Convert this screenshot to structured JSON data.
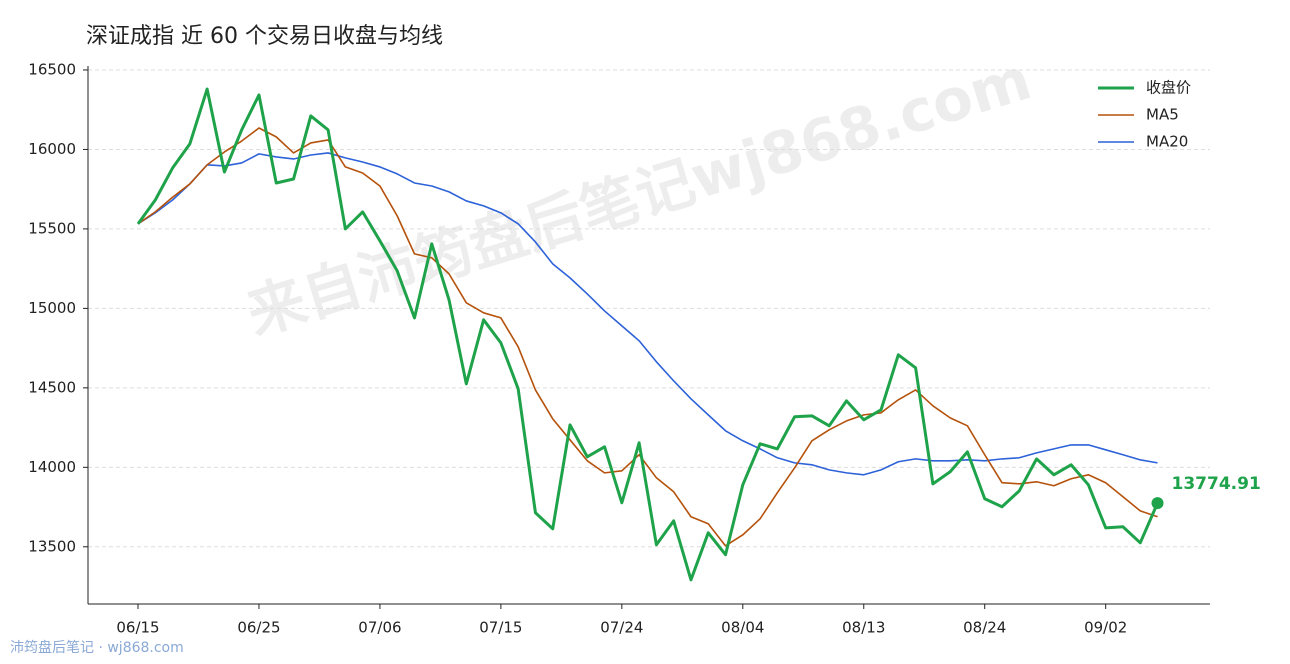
{
  "chart_data": {
    "type": "line",
    "title": "深证成指 近 60 个交易日收盘与均线",
    "watermark": "来自沛筠盘后笔记wj868.com",
    "footer": "沛筠盘后笔记 · wj868.com",
    "categories": [
      "06/15",
      null,
      null,
      null,
      null,
      null,
      null,
      "06/25",
      null,
      null,
      null,
      null,
      null,
      null,
      "07/06",
      null,
      null,
      null,
      null,
      null,
      null,
      "07/15",
      null,
      null,
      null,
      null,
      null,
      null,
      "07/24",
      null,
      null,
      null,
      null,
      null,
      null,
      "08/04",
      null,
      null,
      null,
      null,
      null,
      null,
      "08/13",
      null,
      null,
      null,
      null,
      null,
      null,
      "08/24",
      null,
      null,
      null,
      null,
      null,
      null,
      "09/02",
      null,
      null,
      null
    ],
    "series": [
      {
        "name": "收盘价",
        "color": "#1fa34a",
        "width": 3,
        "end_label": true,
        "values": [
          15532,
          15682,
          15883,
          16035,
          16380,
          15858,
          16123,
          16343,
          15789,
          15814,
          16211,
          16123,
          15500,
          15607,
          15425,
          15236,
          14940,
          15406,
          15053,
          14525,
          14928,
          14783,
          14494,
          13714,
          13613,
          14267,
          14066,
          14129,
          13777,
          14154,
          13513,
          13663,
          13292,
          13588,
          13450,
          13890,
          14148,
          14116,
          14318,
          14324,
          14261,
          14418,
          14299,
          14362,
          14708,
          14626,
          13896,
          13972,
          14097,
          13802,
          13752,
          13852,
          14053,
          13953,
          14016,
          13890,
          13619,
          13626,
          13525,
          13774.91
        ]
      },
      {
        "name": "MA5",
        "color": "#b5520c",
        "width": 1.6,
        "values": [
          15532,
          15607,
          15699,
          15783,
          15903,
          15984,
          16053,
          16135,
          16079,
          15978,
          16041,
          16060,
          15890,
          15852,
          15770,
          15582,
          15343,
          15318,
          15217,
          15035,
          14972,
          14940,
          14758,
          14487,
          14305,
          14173,
          14041,
          13965,
          13978,
          14079,
          13934,
          13846,
          13689,
          13645,
          13506,
          13575,
          13676,
          13840,
          13997,
          14167,
          14236,
          14292,
          14330,
          14343,
          14425,
          14487,
          14387,
          14311,
          14261,
          14079,
          13903,
          13896,
          13909,
          13884,
          13928,
          13953,
          13903,
          13815,
          13726,
          13689
        ]
      },
      {
        "name": "MA20",
        "color": "#2d62d8",
        "width": 1.6,
        "values": [
          15532,
          15601,
          15682,
          15783,
          15903,
          15896,
          15915,
          15972,
          15953,
          15940,
          15965,
          15978,
          15947,
          15921,
          15890,
          15846,
          15789,
          15770,
          15733,
          15676,
          15645,
          15601,
          15532,
          15418,
          15280,
          15192,
          15091,
          14984,
          14890,
          14796,
          14664,
          14544,
          14431,
          14330,
          14230,
          14167,
          14116,
          14060,
          14028,
          14016,
          13984,
          13965,
          13953,
          13984,
          14035,
          14053,
          14041,
          14041,
          14047,
          14041,
          14053,
          14060,
          14091,
          14116,
          14141,
          14141,
          14110,
          14079,
          14047,
          14028
        ]
      }
    ],
    "ylim": [
      13140,
      16525
    ],
    "yticks": [
      13500,
      14000,
      14500,
      15000,
      15500,
      16000,
      16500
    ],
    "grid": true,
    "legend": "upper right"
  }
}
